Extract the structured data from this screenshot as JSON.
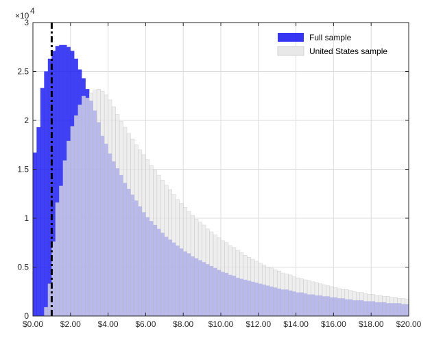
{
  "chart_data": {
    "type": "bar",
    "subtype": "overlaid-histogram",
    "title": "",
    "xlabel": "",
    "ylabel": "",
    "y_exponent_label": "×10",
    "y_exponent_power": "4",
    "x_bin_width": 0.2,
    "xlim": [
      0,
      20
    ],
    "ylim": [
      0,
      3
    ],
    "grid": true,
    "legend_position": "top-right",
    "x_ticks": [
      0,
      2,
      4,
      6,
      8,
      10,
      12,
      14,
      16,
      18,
      20
    ],
    "x_tick_labels": [
      "$0.00",
      "$2.00",
      "$4.00",
      "$6.00",
      "$8.00",
      "$10.00",
      "$12.00",
      "$14.00",
      "$16.00",
      "$18.00",
      "$20.00"
    ],
    "y_ticks": [
      0,
      0.5,
      1,
      1.5,
      2,
      2.5,
      3
    ],
    "y_tick_labels": [
      "0",
      "0.5",
      "1",
      "1.5",
      "2",
      "2.5",
      "3"
    ],
    "reference_line": {
      "x": 1.0,
      "style": "dash-dot",
      "color": "#000000"
    },
    "series": [
      {
        "name": "Full sample",
        "color": "#1f1ff2",
        "values": [
          1.67,
          1.93,
          2.33,
          2.5,
          2.63,
          2.71,
          2.76,
          2.77,
          2.77,
          2.75,
          2.71,
          2.63,
          2.52,
          2.43,
          2.32,
          2.2,
          2.1,
          1.98,
          1.84,
          1.76,
          1.66,
          1.58,
          1.51,
          1.44,
          1.36,
          1.3,
          1.24,
          1.18,
          1.12,
          1.06,
          1.01,
          0.97,
          0.93,
          0.89,
          0.85,
          0.81,
          0.78,
          0.75,
          0.72,
          0.69,
          0.66,
          0.64,
          0.61,
          0.59,
          0.57,
          0.55,
          0.53,
          0.51,
          0.49,
          0.47,
          0.45,
          0.44,
          0.42,
          0.41,
          0.39,
          0.38,
          0.37,
          0.36,
          0.35,
          0.34,
          0.33,
          0.32,
          0.31,
          0.3,
          0.29,
          0.28,
          0.27,
          0.27,
          0.26,
          0.25,
          0.24,
          0.24,
          0.23,
          0.22,
          0.22,
          0.21,
          0.21,
          0.2,
          0.2,
          0.19,
          0.19,
          0.18,
          0.18,
          0.17,
          0.17,
          0.16,
          0.16,
          0.16,
          0.15,
          0.15,
          0.15,
          0.14,
          0.14,
          0.14,
          0.13,
          0.13,
          0.13,
          0.13,
          0.12,
          0.12
        ]
      },
      {
        "name": "United States sample",
        "color": "#e8e8e8",
        "values": [
          0.0,
          0.0,
          0.0,
          0.09,
          0.33,
          0.76,
          1.16,
          1.33,
          1.59,
          1.79,
          1.94,
          2.05,
          2.16,
          2.25,
          2.23,
          2.28,
          2.31,
          2.32,
          2.3,
          2.26,
          2.21,
          2.14,
          2.06,
          1.99,
          1.93,
          1.87,
          1.81,
          1.75,
          1.7,
          1.65,
          1.6,
          1.54,
          1.49,
          1.44,
          1.39,
          1.34,
          1.29,
          1.24,
          1.19,
          1.15,
          1.11,
          1.07,
          1.03,
          0.99,
          0.96,
          0.93,
          0.89,
          0.86,
          0.83,
          0.8,
          0.77,
          0.75,
          0.72,
          0.7,
          0.67,
          0.65,
          0.62,
          0.6,
          0.58,
          0.56,
          0.54,
          0.52,
          0.5,
          0.49,
          0.47,
          0.46,
          0.44,
          0.43,
          0.42,
          0.4,
          0.39,
          0.38,
          0.37,
          0.36,
          0.35,
          0.34,
          0.33,
          0.32,
          0.31,
          0.3,
          0.29,
          0.28,
          0.27,
          0.27,
          0.26,
          0.25,
          0.24,
          0.24,
          0.23,
          0.22,
          0.22,
          0.21,
          0.21,
          0.2,
          0.2,
          0.19,
          0.19,
          0.18,
          0.18,
          0.17
        ]
      }
    ]
  }
}
